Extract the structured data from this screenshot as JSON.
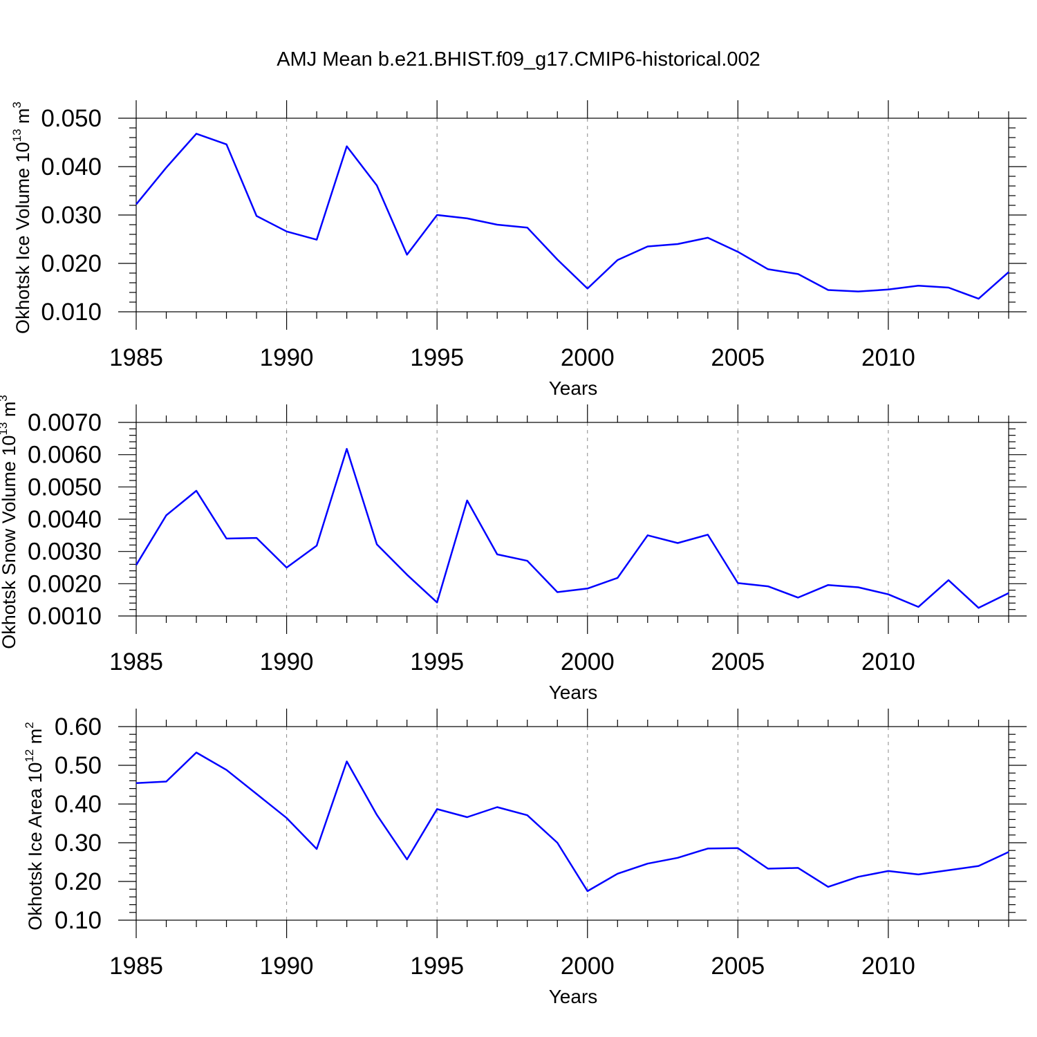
{
  "figure_title": "AMJ Mean b.e21.BHIST.f09_g17.CMIP6-historical.002",
  "colors": {
    "line": "#0000ff",
    "axes": "#000000",
    "grid": "#888888"
  },
  "chart_data": [
    {
      "type": "line",
      "title": "",
      "xlabel": "Years",
      "ylabel": "Okhotsk Ice Volume 10",
      "ylabel_exponent": "13",
      "ylabel_unit": "m",
      "ylabel_unit_exponent": "3",
      "xlim": [
        1985,
        2014
      ],
      "ylim": [
        0.01,
        0.05
      ],
      "x_ticks": [
        1985,
        1990,
        1995,
        2000,
        2005,
        2010
      ],
      "x_tick_labels": [
        "1985",
        "1990",
        "1995",
        "2000",
        "2005",
        "2010"
      ],
      "y_ticks": [
        0.01,
        0.02,
        0.03,
        0.04,
        0.05
      ],
      "y_tick_labels": [
        "0.010",
        "0.020",
        "0.030",
        "0.040",
        "0.050"
      ],
      "y_minor_step": 0.002,
      "grid": "vertical dashed at major x ticks",
      "x": [
        1985,
        1986,
        1987,
        1988,
        1989,
        1990,
        1991,
        1992,
        1993,
        1994,
        1995,
        1996,
        1997,
        1998,
        1999,
        2000,
        2001,
        2002,
        2003,
        2004,
        2005,
        2006,
        2007,
        2008,
        2009,
        2010,
        2011,
        2012,
        2013,
        2014
      ],
      "series": [
        {
          "name": "Okhotsk Ice Volume",
          "values": [
            0.0322,
            0.0398,
            0.0468,
            0.0446,
            0.0298,
            0.0266,
            0.0249,
            0.0442,
            0.0361,
            0.0218,
            0.03,
            0.0293,
            0.028,
            0.0274,
            0.0208,
            0.0148,
            0.0207,
            0.0235,
            0.024,
            0.0253,
            0.0224,
            0.0188,
            0.0178,
            0.0145,
            0.0142,
            0.0146,
            0.0154,
            0.015,
            0.0127,
            0.0182
          ]
        }
      ]
    },
    {
      "type": "line",
      "title": "",
      "xlabel": "Years",
      "ylabel": "Okhotsk Snow Volume 10",
      "ylabel_exponent": "13",
      "ylabel_unit": "m",
      "ylabel_unit_exponent": "3",
      "xlim": [
        1985,
        2014
      ],
      "ylim": [
        0.001,
        0.007
      ],
      "x_ticks": [
        1985,
        1990,
        1995,
        2000,
        2005,
        2010
      ],
      "x_tick_labels": [
        "1985",
        "1990",
        "1995",
        "2000",
        "2005",
        "2010"
      ],
      "y_ticks": [
        0.001,
        0.002,
        0.003,
        0.004,
        0.005,
        0.006,
        0.007
      ],
      "y_tick_labels": [
        "0.0010",
        "0.0020",
        "0.0030",
        "0.0040",
        "0.0050",
        "0.0060",
        "0.0070"
      ],
      "y_minor_step": 0.0002,
      "grid": "vertical dashed at major x ticks",
      "x": [
        1985,
        1986,
        1987,
        1988,
        1989,
        1990,
        1991,
        1992,
        1993,
        1994,
        1995,
        1996,
        1997,
        1998,
        1999,
        2000,
        2001,
        2002,
        2003,
        2004,
        2005,
        2006,
        2007,
        2008,
        2009,
        2010,
        2011,
        2012,
        2013,
        2014
      ],
      "series": [
        {
          "name": "Okhotsk Snow Volume",
          "values": [
            0.00258,
            0.00412,
            0.00488,
            0.0034,
            0.00342,
            0.0025,
            0.00318,
            0.00618,
            0.00322,
            0.00228,
            0.00142,
            0.00458,
            0.00291,
            0.00271,
            0.00174,
            0.00185,
            0.00218,
            0.0035,
            0.00326,
            0.00352,
            0.00202,
            0.00192,
            0.00157,
            0.00196,
            0.00189,
            0.00167,
            0.00128,
            0.00211,
            0.00125,
            0.00171
          ]
        }
      ]
    },
    {
      "type": "line",
      "title": "",
      "xlabel": "Years",
      "ylabel": "Okhotsk Ice Area 10",
      "ylabel_exponent": "12",
      "ylabel_unit": "m",
      "ylabel_unit_exponent": "2",
      "xlim": [
        1985,
        2014
      ],
      "ylim": [
        0.1,
        0.6
      ],
      "x_ticks": [
        1985,
        1990,
        1995,
        2000,
        2005,
        2010
      ],
      "x_tick_labels": [
        "1985",
        "1990",
        "1995",
        "2000",
        "2005",
        "2010"
      ],
      "y_ticks": [
        0.1,
        0.2,
        0.3,
        0.4,
        0.5,
        0.6
      ],
      "y_tick_labels": [
        "0.10",
        "0.20",
        "0.30",
        "0.40",
        "0.50",
        "0.60"
      ],
      "y_minor_step": 0.02,
      "grid": "vertical dashed at major x ticks",
      "x": [
        1985,
        1986,
        1987,
        1988,
        1989,
        1990,
        1991,
        1992,
        1993,
        1994,
        1995,
        1996,
        1997,
        1998,
        1999,
        2000,
        2001,
        2002,
        2003,
        2004,
        2005,
        2006,
        2007,
        2008,
        2009,
        2010,
        2011,
        2012,
        2013,
        2014
      ],
      "series": [
        {
          "name": "Okhotsk Ice Area",
          "values": [
            0.454,
            0.458,
            0.533,
            0.488,
            0.426,
            0.364,
            0.284,
            0.51,
            0.372,
            0.257,
            0.387,
            0.366,
            0.392,
            0.371,
            0.3,
            0.175,
            0.22,
            0.246,
            0.261,
            0.285,
            0.286,
            0.233,
            0.235,
            0.186,
            0.212,
            0.227,
            0.218,
            0.229,
            0.24,
            0.276
          ]
        }
      ]
    }
  ]
}
